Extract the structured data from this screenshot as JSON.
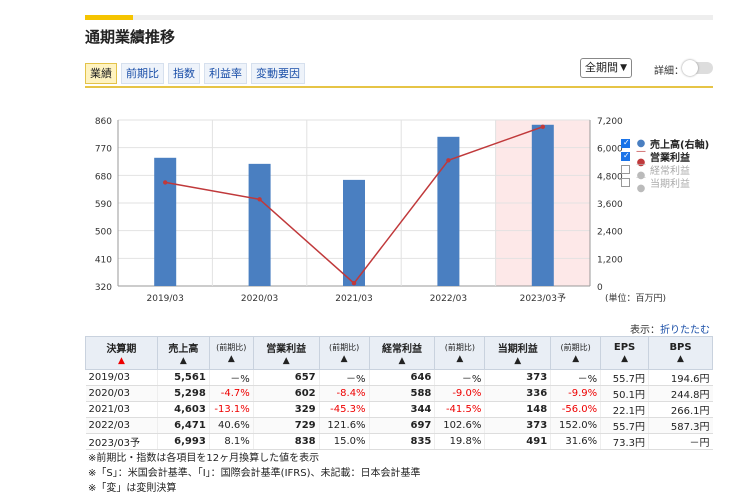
{
  "title": "通期業績推移",
  "tabs": [
    {
      "label": "業績",
      "active": true
    },
    {
      "label": "前期比",
      "active": false
    },
    {
      "label": "指数",
      "active": false
    },
    {
      "label": "利益率",
      "active": false
    },
    {
      "label": "変動要因",
      "active": false
    }
  ],
  "period_select": "全期間",
  "detail_label": "詳細：",
  "chart_data": {
    "type": "bar",
    "categories": [
      "2019/03",
      "2020/03",
      "2021/03",
      "2022/03",
      "2023/03予"
    ],
    "series": [
      {
        "name": "売上高(右軸)",
        "type": "bar",
        "axis": "right",
        "values": [
          5561,
          5298,
          4603,
          6471,
          6993
        ],
        "color": "#4a7fc1"
      },
      {
        "name": "営業利益",
        "type": "line",
        "axis": "left",
        "values": [
          657,
          602,
          329,
          729,
          838
        ],
        "color": "#c0393b"
      }
    ],
    "left_axis": {
      "min": 320,
      "max": 860,
      "ticks": [
        "860",
        "770",
        "680",
        "590",
        "500",
        "410",
        "320"
      ]
    },
    "right_axis": {
      "min": 0,
      "max": 7200,
      "ticks": [
        "7,200",
        "6,000",
        "4,800",
        "3,600",
        "2,400",
        "1,200",
        "0"
      ]
    },
    "highlight_category": "2023/03予",
    "unit_label": "(単位：百万円)"
  },
  "legend": [
    {
      "label": "売上高(右軸)",
      "checked": true,
      "marker": "●",
      "color": "#4a7fc1"
    },
    {
      "label": "営業利益",
      "checked": true,
      "marker": "—●",
      "color": "#c0393b"
    },
    {
      "label": "経常利益",
      "checked": false,
      "marker": "—●",
      "color": "#bbbbbb"
    },
    {
      "label": "当期利益",
      "checked": false,
      "marker": "—●",
      "color": "#bbbbbb"
    }
  ],
  "display_label": "表示：",
  "fold_link": "折りたたむ",
  "table": {
    "headers": [
      "決算期",
      "売上高",
      "(前期比)",
      "営業利益",
      "(前期比)",
      "経常利益",
      "(前期比)",
      "当期利益",
      "(前期比)",
      "EPS",
      "BPS"
    ],
    "rows": [
      {
        "period": "2019/03",
        "sales": "5,561",
        "sales_yoy": "－%",
        "op": "657",
        "op_yoy": "－%",
        "ord": "646",
        "ord_yoy": "－%",
        "net": "373",
        "net_yoy": "－%",
        "eps": "55.7円",
        "bps": "194.6円"
      },
      {
        "period": "2020/03",
        "sales": "5,298",
        "sales_yoy": "-4.7%",
        "op": "602",
        "op_yoy": "-8.4%",
        "ord": "588",
        "ord_yoy": "-9.0%",
        "net": "336",
        "net_yoy": "-9.9%",
        "eps": "50.1円",
        "bps": "244.8円"
      },
      {
        "period": "2021/03",
        "sales": "4,603",
        "sales_yoy": "-13.1%",
        "op": "329",
        "op_yoy": "-45.3%",
        "ord": "344",
        "ord_yoy": "-41.5%",
        "net": "148",
        "net_yoy": "-56.0%",
        "eps": "22.1円",
        "bps": "266.1円"
      },
      {
        "period": "2022/03",
        "sales": "6,471",
        "sales_yoy": "40.6%",
        "op": "729",
        "op_yoy": "121.6%",
        "ord": "697",
        "ord_yoy": "102.6%",
        "net": "373",
        "net_yoy": "152.0%",
        "eps": "55.7円",
        "bps": "587.3円"
      },
      {
        "period": "2023/03予",
        "sales": "6,993",
        "sales_yoy": "8.1%",
        "op": "838",
        "op_yoy": "15.0%",
        "ord": "835",
        "ord_yoy": "19.8%",
        "net": "491",
        "net_yoy": "31.6%",
        "eps": "73.3円",
        "bps": "－円"
      }
    ]
  },
  "notes": [
    "※前期比・指数は各項目を12ヶ月換算した値を表示",
    "※「S」：米国会計基準、「I」：国際会計基準(IFRS)、未記載：日本会計基準",
    "※「変」は変則決算"
  ]
}
